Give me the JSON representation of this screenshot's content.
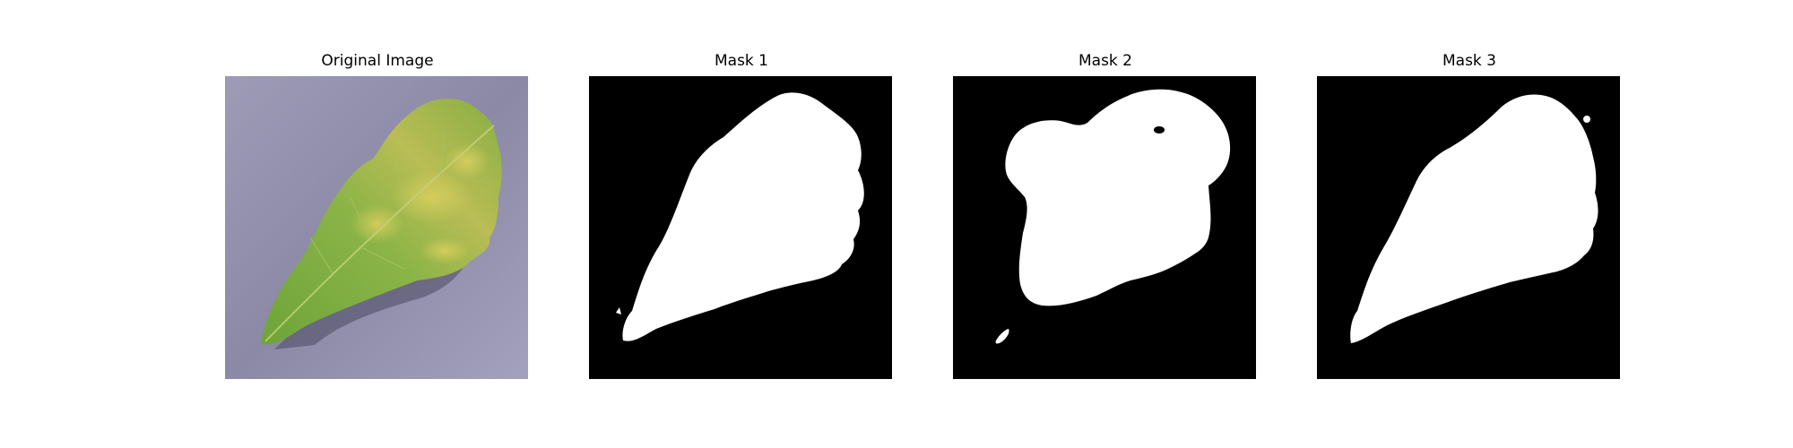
{
  "panels": [
    {
      "title": "Original Image"
    },
    {
      "title": "Mask 1"
    },
    {
      "title": "Mask 2"
    },
    {
      "title": "Mask 3"
    }
  ],
  "colors": {
    "mask_foreground": "#ffffff",
    "mask_background": "#000000",
    "leaf_green": "#7fab3f",
    "leaf_yellow": "#c9c457",
    "background_surface": "#8e8ca8"
  }
}
